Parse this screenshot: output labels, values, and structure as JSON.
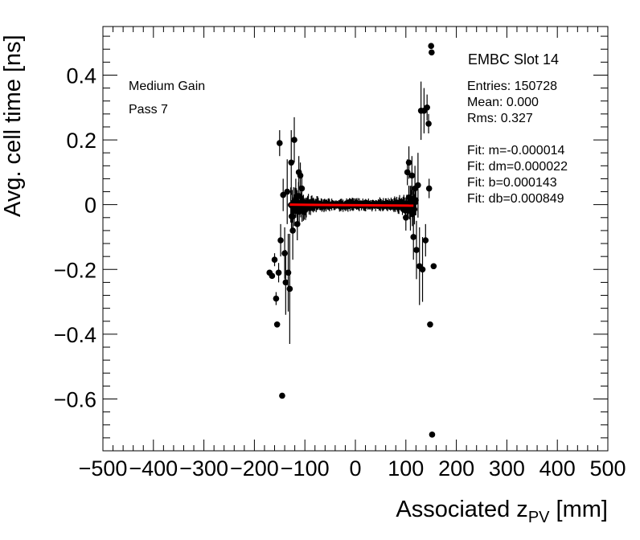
{
  "chart_data": {
    "type": "scatter",
    "title": "",
    "xlabel_main": "Associated z",
    "xlabel_sub": "PV",
    "xlabel_unit": " [mm]",
    "ylabel": "Avg. cell time [ns]",
    "xlim": [
      -500,
      500
    ],
    "ylim": [
      -0.76,
      0.55
    ],
    "x_ticks": [
      -500,
      -400,
      -300,
      -200,
      -100,
      0,
      100,
      200,
      300,
      400,
      500
    ],
    "x_tick_labels": [
      "−500",
      "−400",
      "−300",
      "−200",
      "−100",
      "0",
      "100",
      "200",
      "300",
      "400",
      "500"
    ],
    "y_ticks": [
      -0.6,
      -0.4,
      -0.2,
      0,
      0.2,
      0.4
    ],
    "y_tick_labels": [
      "−0.6",
      "−0.4",
      "−0.2",
      "0",
      "0.2",
      "0.4"
    ],
    "grid": false,
    "marker_color": "#000000",
    "fit_color": "#ff0000",
    "fit_line": {
      "x": [
        -130,
        115
      ],
      "y": [
        0.0,
        -0.003
      ]
    },
    "annotations": {
      "slot": "EMBC Slot 14",
      "gain": "Medium Gain",
      "pass": "Pass 7",
      "entries": "Entries: 150728",
      "mean": "Mean: 0.000",
      "rms": "Rms: 0.327",
      "fit_m": "Fit: m=-0.000014",
      "fit_dm": "Fit: dm=0.000022",
      "fit_b": "Fit: b=0.000143",
      "fit_db": "Fit: db=0.000849"
    },
    "outlier_points": [
      {
        "x": -170,
        "y": -0.21,
        "err": 0
      },
      {
        "x": -165,
        "y": -0.22,
        "err": 0
      },
      {
        "x": -160,
        "y": -0.17,
        "err": 0.02
      },
      {
        "x": -157,
        "y": -0.29,
        "err": 0.02
      },
      {
        "x": -155,
        "y": -0.37,
        "err": 0
      },
      {
        "x": -152,
        "y": -0.21,
        "err": 0.03
      },
      {
        "x": -150,
        "y": 0.19,
        "err": 0.04
      },
      {
        "x": -148,
        "y": -0.11,
        "err": 0.05
      },
      {
        "x": -145,
        "y": -0.59,
        "err": 0
      },
      {
        "x": -143,
        "y": 0.03,
        "err": 0.05
      },
      {
        "x": -140,
        "y": -0.15,
        "err": 0.08
      },
      {
        "x": -138,
        "y": -0.24,
        "err": 0.1
      },
      {
        "x": -135,
        "y": 0.04,
        "err": 0.1
      },
      {
        "x": -133,
        "y": -0.21,
        "err": 0.12
      },
      {
        "x": -130,
        "y": -0.26,
        "err": 0.17
      },
      {
        "x": -127,
        "y": 0.13,
        "err": 0.1
      },
      {
        "x": -124,
        "y": -0.08,
        "err": 0.09
      },
      {
        "x": -121,
        "y": 0.2,
        "err": 0.07
      },
      {
        "x": -118,
        "y": 0.02,
        "err": 0.06
      },
      {
        "x": -115,
        "y": -0.06,
        "err": 0.05
      },
      {
        "x": -112,
        "y": 0.1,
        "err": 0.05
      },
      {
        "x": -109,
        "y": 0.09,
        "err": 0.04
      },
      {
        "x": -106,
        "y": 0.05,
        "err": 0.04
      },
      {
        "x": -103,
        "y": -0.02,
        "err": 0.03
      },
      {
        "x": 100,
        "y": -0.04,
        "err": 0.04
      },
      {
        "x": 103,
        "y": 0.1,
        "err": 0.04
      },
      {
        "x": 106,
        "y": 0.13,
        "err": 0.05
      },
      {
        "x": 109,
        "y": -0.02,
        "err": 0.06
      },
      {
        "x": 112,
        "y": 0.09,
        "err": 0.06
      },
      {
        "x": 115,
        "y": -0.1,
        "err": 0.07
      },
      {
        "x": 118,
        "y": 0.05,
        "err": 0.07
      },
      {
        "x": 121,
        "y": -0.14,
        "err": 0.09
      },
      {
        "x": 124,
        "y": 0.06,
        "err": 0.1
      },
      {
        "x": 127,
        "y": -0.19,
        "err": 0.12
      },
      {
        "x": 130,
        "y": 0.29,
        "err": 0.09
      },
      {
        "x": 133,
        "y": -0.2,
        "err": 0.1
      },
      {
        "x": 136,
        "y": 0.29,
        "err": 0.07
      },
      {
        "x": 139,
        "y": -0.11,
        "err": 0.05
      },
      {
        "x": 142,
        "y": 0.3,
        "err": 0.04
      },
      {
        "x": 145,
        "y": 0.25,
        "err": 0.03
      },
      {
        "x": 146,
        "y": 0.05,
        "err": 0.03
      },
      {
        "x": 148,
        "y": -0.37,
        "err": 0
      },
      {
        "x": 150,
        "y": 0.49,
        "err": 0
      },
      {
        "x": 151,
        "y": 0.47,
        "err": 0
      },
      {
        "x": 152,
        "y": -0.71,
        "err": 0
      },
      {
        "x": 155,
        "y": -0.19,
        "err": 0
      }
    ]
  }
}
